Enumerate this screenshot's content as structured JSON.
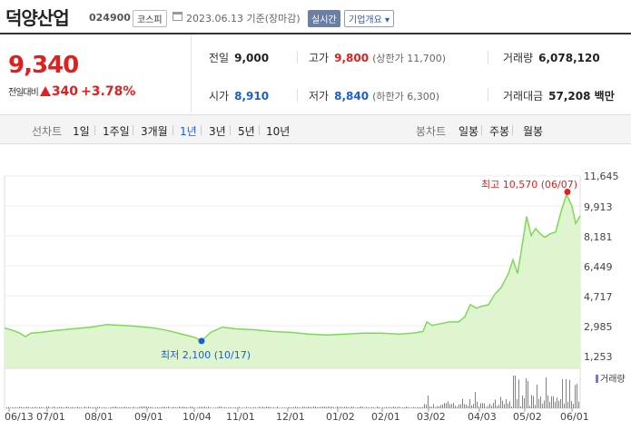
{
  "header": {
    "name": "덕양산업",
    "code": "024900",
    "market": "코스피",
    "date": "2023.06.13 기준(장마감)",
    "realtime_btn": "실시간",
    "company_info_btn": "기업개요 ▾"
  },
  "quote": {
    "price": "9,340",
    "change_label": "전일대비",
    "change": "340",
    "change_pct": "+3.78%",
    "prev_label": "전일",
    "prev": "9,000",
    "high_label": "고가",
    "high": "9,800",
    "upper_limit": "(상한가 11,700)",
    "volume_label": "거래량",
    "volume": "6,078,120",
    "open_label": "시가",
    "open": "8,910",
    "low_label": "저가",
    "low": "8,840",
    "lower_limit": "(하한가 6,300)",
    "amount_label": "거래대금",
    "amount": "57,208 백만"
  },
  "tabs": {
    "line_chart": "선차트",
    "periods": [
      "1일",
      "1주일",
      "3개월",
      "1년",
      "3년",
      "5년",
      "10년"
    ],
    "active_period": "1년",
    "candle_chart": "봉차트",
    "candles": [
      "일봉",
      "주봉",
      "월봉"
    ]
  },
  "chart_data": {
    "type": "area",
    "y_ticks": [
      "11,645",
      "9,913",
      "8,181",
      "6,449",
      "4,717",
      "2,985",
      "1,253"
    ],
    "ylim": [
      1253,
      11645
    ],
    "x_ticks": [
      "06/13",
      "07/01",
      "08/01",
      "09/01",
      "10/04",
      "11/01",
      "12/01",
      "01/02",
      "02/01",
      "03/02",
      "04/03",
      "05/02",
      "06/01"
    ],
    "max_label": "최고 10,570 (06/07)",
    "min_label": "최저 2,100 (10/17)",
    "volume_legend": "거래량",
    "colors": {
      "line": "#7ed957",
      "fill": "#dff5cf",
      "max": "#e02020",
      "min": "#1a5fd0",
      "volume": "#8a72c0"
    }
  }
}
